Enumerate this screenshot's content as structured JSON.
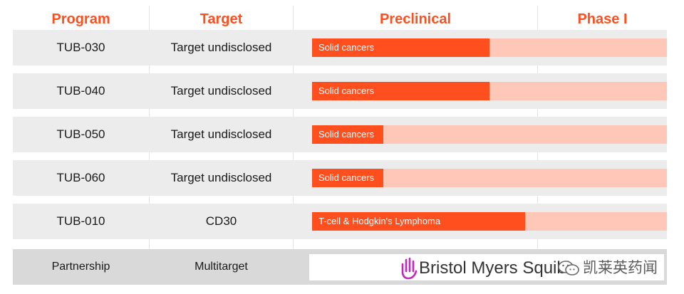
{
  "chart_data": {
    "type": "table",
    "columns": [
      "Program",
      "Target",
      "Preclinical",
      "Phase I"
    ],
    "rows": [
      {
        "program": "TUB-030",
        "target": "Target undisclosed",
        "indication": "Solid cancers",
        "progress": 0.5
      },
      {
        "program": "TUB-040",
        "target": "Target undisclosed",
        "indication": "Solid cancers",
        "progress": 0.5
      },
      {
        "program": "TUB-050",
        "target": "Target undisclosed",
        "indication": "Solid cancers",
        "progress": 0.2
      },
      {
        "program": "TUB-060",
        "target": "Target undisclosed",
        "indication": "Solid cancers",
        "progress": 0.2
      },
      {
        "program": "TUB-010",
        "target": "CD30",
        "indication": "T-cell & Hodgkin's Lymphoma",
        "progress": 0.6
      }
    ],
    "partnership": {
      "program": "Partnership",
      "target": "Multitarget",
      "partner": "Bristol Myers Squibb"
    },
    "colors": {
      "accent": "#ff4f1f",
      "track": "#ffc7b8",
      "row": "#ececec",
      "partner_row": "#d9d9d9",
      "logo_purple": "#be2bbb"
    }
  },
  "watermark": {
    "text": "凯莱英药闻"
  }
}
